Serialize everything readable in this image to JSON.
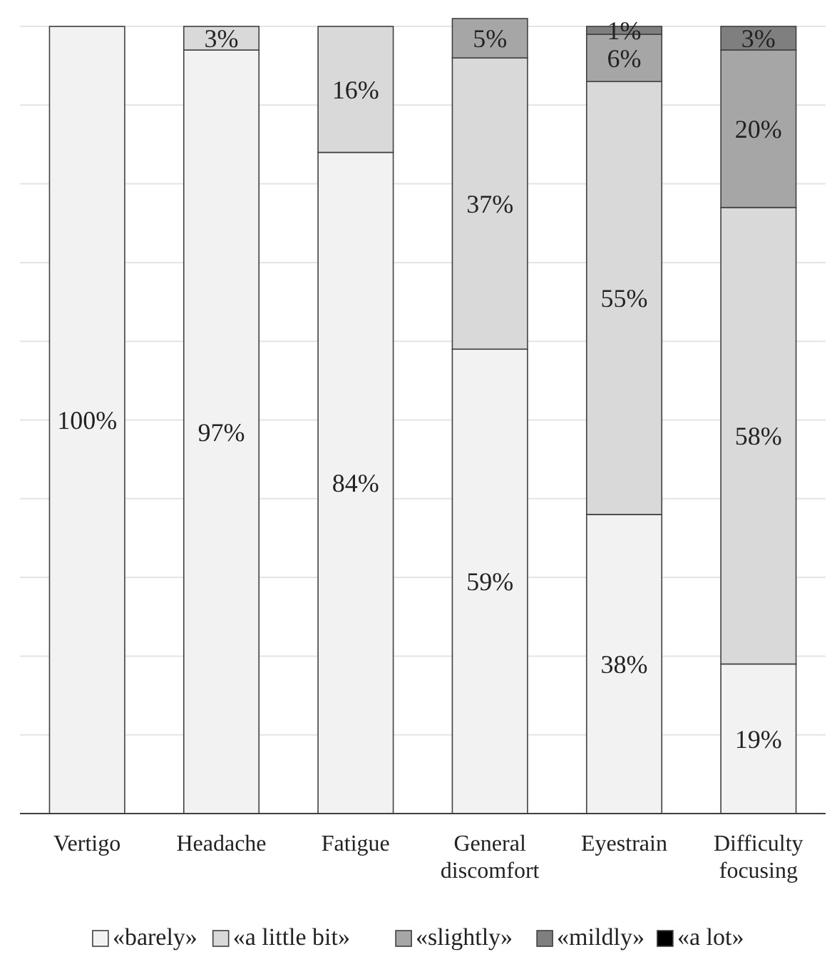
{
  "chart_data": {
    "type": "bar",
    "stacked": true,
    "categories": [
      "Vertigo",
      "Headache",
      "Fatigue",
      "General discomfort",
      "Eyestrain",
      "Difficulty focusing"
    ],
    "series": [
      {
        "name": "«barely»",
        "color": "#f2f2f2",
        "values": [
          100,
          97,
          84,
          59,
          38,
          19
        ],
        "value_labels": [
          "100%",
          "97%",
          "84%",
          "59%",
          "38%",
          "19%"
        ]
      },
      {
        "name": "«a little bit»",
        "color": "#d9d9d9",
        "values": [
          0,
          3,
          16,
          37,
          55,
          58
        ],
        "value_labels": [
          null,
          "3%",
          "16%",
          "37%",
          "55%",
          "58%"
        ]
      },
      {
        "name": "«slightly»",
        "color": "#a6a6a6",
        "values": [
          0,
          0,
          0,
          5,
          6,
          20
        ],
        "value_labels": [
          null,
          null,
          null,
          "5%",
          "6%",
          "20%"
        ]
      },
      {
        "name": "«mildly»",
        "color": "#7f7f7f",
        "values": [
          0,
          0,
          0,
          0,
          1,
          3
        ],
        "value_labels": [
          null,
          null,
          null,
          null,
          "1%",
          "3%"
        ]
      },
      {
        "name": "«a lot»",
        "color": "#000000",
        "values": [
          0,
          0,
          0,
          0,
          0,
          0
        ]
      }
    ],
    "ylim": [
      0,
      101
    ],
    "yticks": [
      {
        "value": 0,
        "label": null
      },
      {
        "value": 10,
        "label": null
      },
      {
        "value": 20,
        "label": null
      },
      {
        "value": 30,
        "label": null
      },
      {
        "value": 40,
        "label": null
      },
      {
        "value": 50,
        "label": null
      },
      {
        "value": 60,
        "label": null
      },
      {
        "value": 70,
        "label": null
      },
      {
        "value": 80,
        "label": null
      },
      {
        "value": 90,
        "label": null
      },
      {
        "value": 100,
        "label": null
      }
    ],
    "tick_labels": "x",
    "grid": "y",
    "legend": "bottom"
  }
}
